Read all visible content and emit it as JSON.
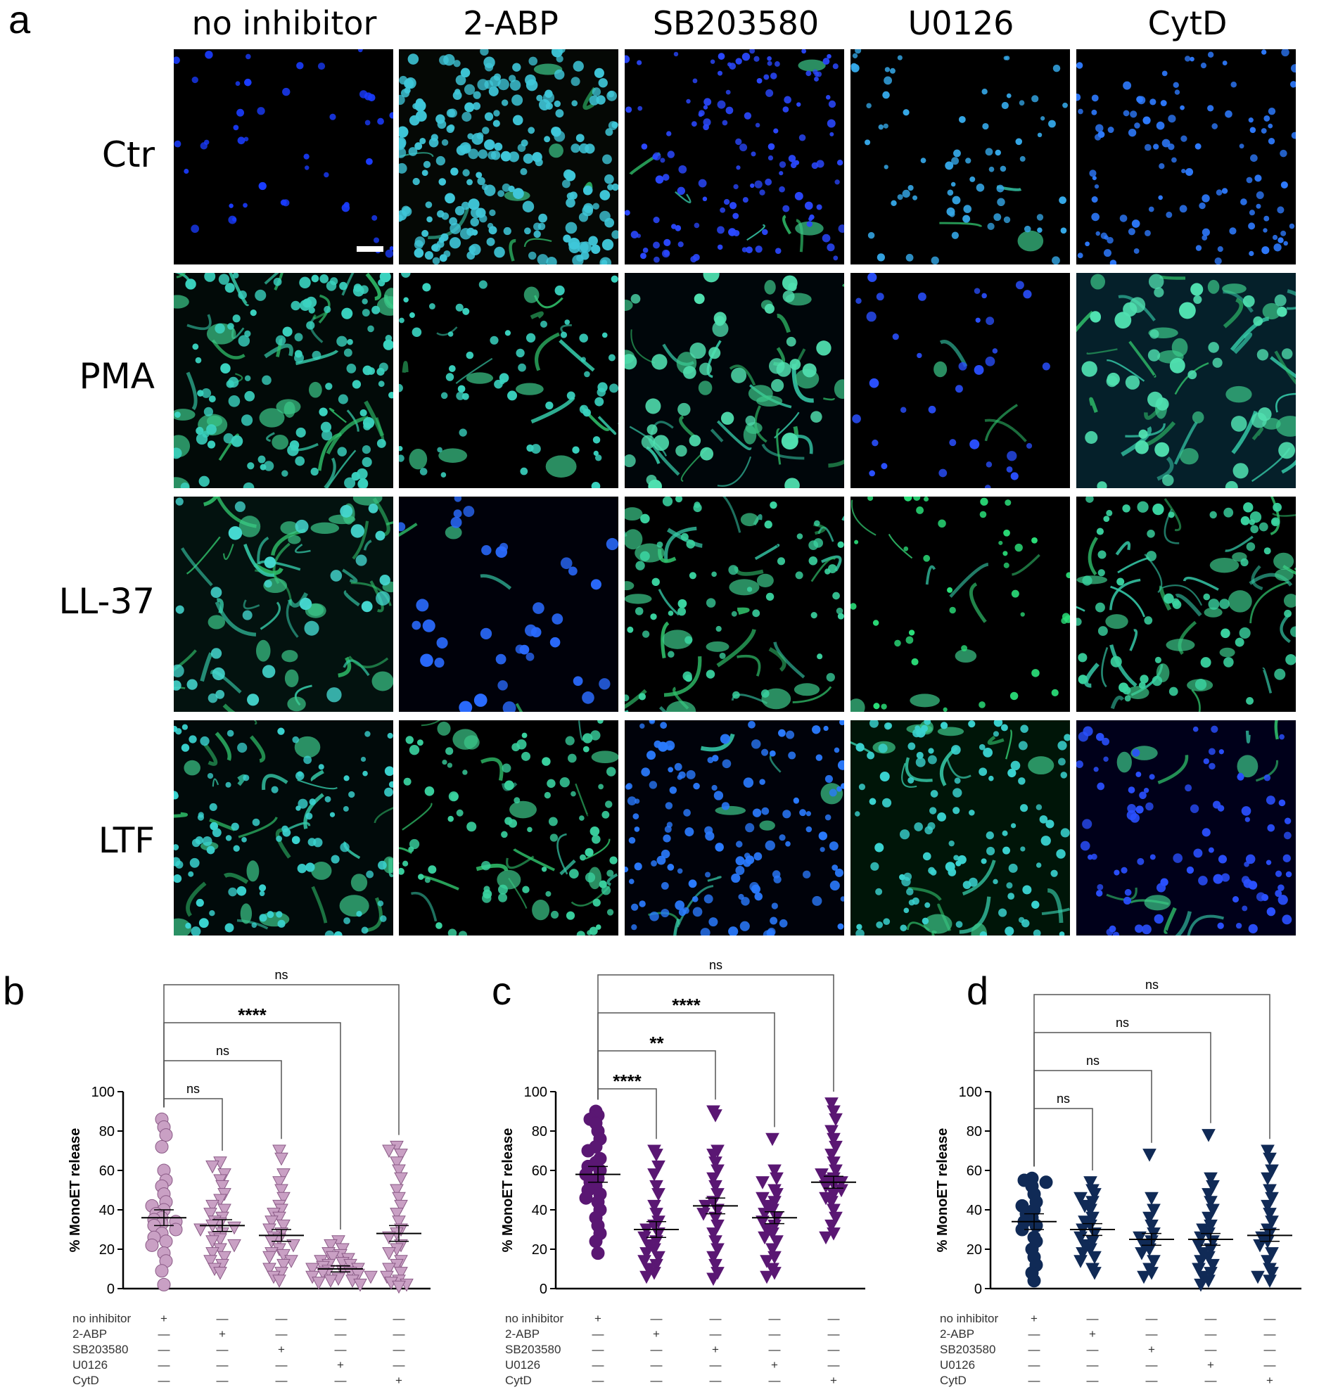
{
  "panel_a": {
    "letter": "a",
    "columns": [
      "no inhibitor",
      "2-ABP",
      "SB203580",
      "U0126",
      "CytD"
    ],
    "rows": [
      "Ctr",
      "PMA",
      "LL-37",
      "LTF"
    ]
  },
  "chart_data": [
    {
      "letter": "b",
      "type": "scatter",
      "ylabel": "% MonoET release",
      "ylim": [
        0,
        100
      ],
      "yticks": [
        0,
        20,
        40,
        60,
        80,
        100
      ],
      "marker_color": "#c9a0c4",
      "treatment_labels": [
        "no inhibitor",
        "2-ABP",
        "SB203580",
        "U0126",
        "CytD"
      ],
      "treatment_matrix": [
        [
          "+",
          "—",
          "—",
          "—",
          "—"
        ],
        [
          "—",
          "+",
          "—",
          "—",
          "—"
        ],
        [
          "—",
          "—",
          "+",
          "—",
          "—"
        ],
        [
          "—",
          "—",
          "—",
          "+",
          "—"
        ],
        [
          "—",
          "—",
          "—",
          "—",
          "+"
        ]
      ],
      "comparisons": [
        {
          "to": 1,
          "label": "ns"
        },
        {
          "to": 2,
          "label": "ns"
        },
        {
          "to": 3,
          "label": "****"
        },
        {
          "to": 4,
          "label": "ns"
        }
      ],
      "series": [
        {
          "marker": "circle",
          "mean": 36,
          "sem": 4,
          "values": [
            86,
            82,
            78,
            72,
            60,
            55,
            52,
            48,
            44,
            42,
            40,
            38,
            36,
            35,
            34,
            33,
            32,
            30,
            28,
            26,
            24,
            22,
            18,
            14,
            9,
            2
          ]
        },
        {
          "marker": "triangle",
          "mean": 32,
          "sem": 3,
          "values": [
            64,
            62,
            58,
            55,
            52,
            48,
            45,
            42,
            40,
            38,
            36,
            34,
            33,
            32,
            31,
            30,
            28,
            26,
            25,
            24,
            22,
            20,
            18,
            16,
            14,
            12,
            10,
            8
          ]
        },
        {
          "marker": "triangle",
          "mean": 27,
          "sem": 3,
          "values": [
            70,
            66,
            58,
            54,
            50,
            46,
            42,
            40,
            38,
            36,
            34,
            32,
            30,
            28,
            26,
            25,
            24,
            22,
            20,
            18,
            17,
            16,
            14,
            12,
            10,
            8,
            6,
            4
          ]
        },
        {
          "marker": "triangle",
          "mean": 10,
          "sem": 1.5,
          "values": [
            24,
            22,
            20,
            18,
            17,
            16,
            15,
            14,
            13,
            12,
            12,
            11,
            10,
            10,
            9,
            9,
            8,
            8,
            7,
            6,
            6,
            5,
            4,
            4,
            3,
            2
          ]
        },
        {
          "marker": "triangle",
          "mean": 28,
          "sem": 4,
          "values": [
            72,
            70,
            68,
            64,
            60,
            56,
            50,
            46,
            42,
            38,
            34,
            30,
            28,
            26,
            22,
            20,
            18,
            14,
            12,
            10,
            8,
            6,
            4,
            3,
            2,
            1
          ]
        }
      ]
    },
    {
      "letter": "c",
      "type": "scatter",
      "ylabel": "% MonoET release",
      "ylim": [
        0,
        100
      ],
      "yticks": [
        0,
        20,
        40,
        60,
        80,
        100
      ],
      "marker_color": "#5a1773",
      "treatment_labels": [
        "no inhibitor",
        "2-ABP",
        "SB203580",
        "U0126",
        "CytD"
      ],
      "treatment_matrix": [
        [
          "+",
          "—",
          "—",
          "—",
          "—"
        ],
        [
          "—",
          "+",
          "—",
          "—",
          "—"
        ],
        [
          "—",
          "—",
          "+",
          "—",
          "—"
        ],
        [
          "—",
          "—",
          "—",
          "+",
          "—"
        ],
        [
          "—",
          "—",
          "—",
          "—",
          "+"
        ]
      ],
      "comparisons": [
        {
          "to": 1,
          "label": "****"
        },
        {
          "to": 2,
          "label": "**"
        },
        {
          "to": 3,
          "label": "****"
        },
        {
          "to": 4,
          "label": "ns"
        }
      ],
      "series": [
        {
          "marker": "circle",
          "mean": 58,
          "sem": 4,
          "values": [
            90,
            88,
            86,
            84,
            80,
            76,
            72,
            70,
            66,
            64,
            62,
            60,
            58,
            56,
            54,
            52,
            50,
            48,
            46,
            44,
            40,
            36,
            32,
            28,
            24,
            18
          ]
        },
        {
          "marker": "triangle",
          "mean": 30,
          "sem": 4,
          "values": [
            70,
            68,
            62,
            58,
            52,
            48,
            42,
            38,
            34,
            32,
            30,
            28,
            26,
            24,
            22,
            20,
            18,
            16,
            14,
            12,
            10,
            8,
            6
          ]
        },
        {
          "marker": "triangle",
          "mean": 42,
          "sem": 4,
          "values": [
            90,
            88,
            70,
            68,
            64,
            60,
            56,
            52,
            48,
            44,
            42,
            40,
            38,
            36,
            32,
            28,
            24,
            20,
            16,
            12,
            8,
            5
          ]
        },
        {
          "marker": "triangle",
          "mean": 36,
          "sem": 3,
          "values": [
            76,
            60,
            56,
            54,
            50,
            48,
            46,
            44,
            42,
            40,
            38,
            36,
            34,
            32,
            30,
            28,
            26,
            24,
            20,
            16,
            14,
            10,
            8,
            6
          ]
        },
        {
          "marker": "triangle",
          "mean": 54,
          "sem": 3,
          "values": [
            94,
            90,
            86,
            80,
            76,
            72,
            68,
            64,
            60,
            58,
            56,
            55,
            54,
            53,
            52,
            50,
            48,
            46,
            44,
            40,
            36,
            32,
            28,
            26
          ]
        }
      ]
    },
    {
      "letter": "d",
      "type": "scatter",
      "ylabel": "% MonoET release",
      "ylim": [
        0,
        100
      ],
      "yticks": [
        0,
        20,
        40,
        60,
        80,
        100
      ],
      "marker_color": "#102a56",
      "treatment_labels": [
        "no inhibitor",
        "2-ABP",
        "SB203580",
        "U0126",
        "CytD"
      ],
      "treatment_matrix": [
        [
          "+",
          "—",
          "—",
          "—",
          "—"
        ],
        [
          "—",
          "+",
          "—",
          "—",
          "—"
        ],
        [
          "—",
          "—",
          "+",
          "—",
          "—"
        ],
        [
          "—",
          "—",
          "—",
          "+",
          "—"
        ],
        [
          "—",
          "—",
          "—",
          "—",
          "+"
        ]
      ],
      "comparisons": [
        {
          "to": 1,
          "label": "ns"
        },
        {
          "to": 2,
          "label": "ns"
        },
        {
          "to": 3,
          "label": "ns"
        },
        {
          "to": 4,
          "label": "ns"
        }
      ],
      "series": [
        {
          "marker": "circle",
          "mean": 34,
          "sem": 4,
          "values": [
            56,
            55,
            54,
            52,
            48,
            44,
            42,
            40,
            38,
            36,
            34,
            32,
            30,
            26,
            24,
            20,
            16,
            12,
            8,
            4
          ]
        },
        {
          "marker": "triangle",
          "mean": 30,
          "sem": 3,
          "values": [
            54,
            50,
            48,
            46,
            44,
            42,
            40,
            36,
            34,
            32,
            30,
            28,
            26,
            24,
            22,
            20,
            18,
            16,
            14,
            10,
            8
          ]
        },
        {
          "marker": "triangle",
          "mean": 25,
          "sem": 3,
          "values": [
            68,
            46,
            40,
            36,
            32,
            28,
            26,
            24,
            22,
            20,
            18,
            14,
            10,
            8,
            6
          ]
        },
        {
          "marker": "triangle",
          "mean": 25,
          "sem": 3,
          "values": [
            78,
            56,
            52,
            48,
            44,
            40,
            36,
            32,
            30,
            28,
            26,
            24,
            22,
            20,
            18,
            16,
            14,
            12,
            10,
            8,
            6,
            4,
            2
          ]
        },
        {
          "marker": "triangle",
          "mean": 27,
          "sem": 3,
          "values": [
            70,
            66,
            60,
            56,
            50,
            46,
            42,
            38,
            34,
            30,
            28,
            26,
            24,
            22,
            18,
            14,
            10,
            8,
            6,
            4
          ]
        }
      ]
    }
  ]
}
